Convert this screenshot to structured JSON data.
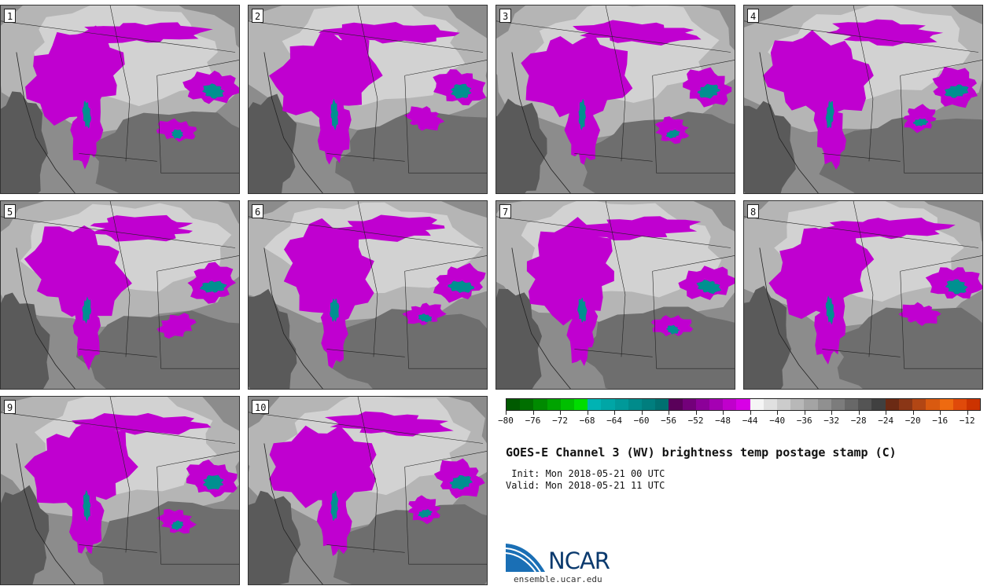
{
  "panels": [
    {
      "label": "1"
    },
    {
      "label": "2"
    },
    {
      "label": "3"
    },
    {
      "label": "4"
    },
    {
      "label": "5"
    },
    {
      "label": "6"
    },
    {
      "label": "7"
    },
    {
      "label": "8"
    },
    {
      "label": "9"
    },
    {
      "label": "10"
    }
  ],
  "colorbar": {
    "min": -80,
    "max": -10,
    "tick_labels": [
      "−80",
      "−76",
      "−72",
      "−68",
      "−64",
      "−60",
      "−56",
      "−52",
      "−48",
      "−44",
      "−40",
      "−36",
      "−32",
      "−28",
      "−24",
      "−20",
      "−16",
      "−12"
    ],
    "tick_values": [
      -80,
      -76,
      -72,
      -68,
      -64,
      -60,
      -56,
      -52,
      -48,
      -44,
      -40,
      -36,
      -32,
      -28,
      -24,
      -20,
      -16,
      -12
    ],
    "colors": [
      "#005a00",
      "#006f00",
      "#008a00",
      "#00a300",
      "#00bf00",
      "#00dd00",
      "#00b3b3",
      "#00a6a6",
      "#009999",
      "#008b8b",
      "#007e7e",
      "#007070",
      "#5a005a",
      "#73007a",
      "#8c0099",
      "#a500b3",
      "#c000cc",
      "#d800e6",
      "#f5f5f5",
      "#e0e0e0",
      "#cccccc",
      "#b8b8b8",
      "#a4a4a4",
      "#909090",
      "#7c7c7c",
      "#686868",
      "#545454",
      "#404040",
      "#6b2a14",
      "#8a3616",
      "#b24614",
      "#d95a10",
      "#ee6a10",
      "#e04a0a",
      "#cc3300"
    ]
  },
  "title": "GOES-E Channel 3 (WV) brightness temp postage stamp (C)",
  "init": " Init: Mon 2018-05-21 00 UTC",
  "valid": "Valid: Mon 2018-05-21 11 UTC",
  "logo_text": "NCAR",
  "site": "ensemble.ucar.edu",
  "colors": {
    "cloud_magenta": "#c000d0",
    "cold_teal": "#009090",
    "panel_gray": "#8a8a8a"
  }
}
